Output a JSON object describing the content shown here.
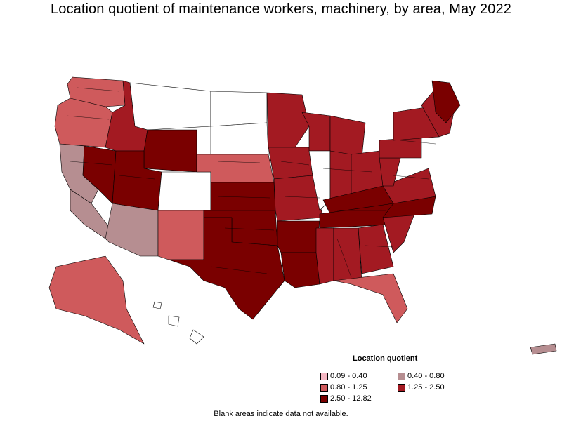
{
  "title": "Location quotient of maintenance workers, machinery, by area, May 2022",
  "legend": {
    "title": "Location quotient",
    "items": [
      {
        "label": "0.09 - 0.40",
        "color": "#f4b6c2"
      },
      {
        "label": "0.40 - 0.80",
        "color": "#b68e91"
      },
      {
        "label": "0.80 - 1.25",
        "color": "#cf5a5c"
      },
      {
        "label": "1.25 - 2.50",
        "color": "#a31a22"
      },
      {
        "label": "2.50 - 12.82",
        "color": "#7a0000"
      }
    ]
  },
  "note": "Blank areas indicate data not available.",
  "map_colors": {
    "border": "#000000",
    "blank": "#ffffff"
  }
}
